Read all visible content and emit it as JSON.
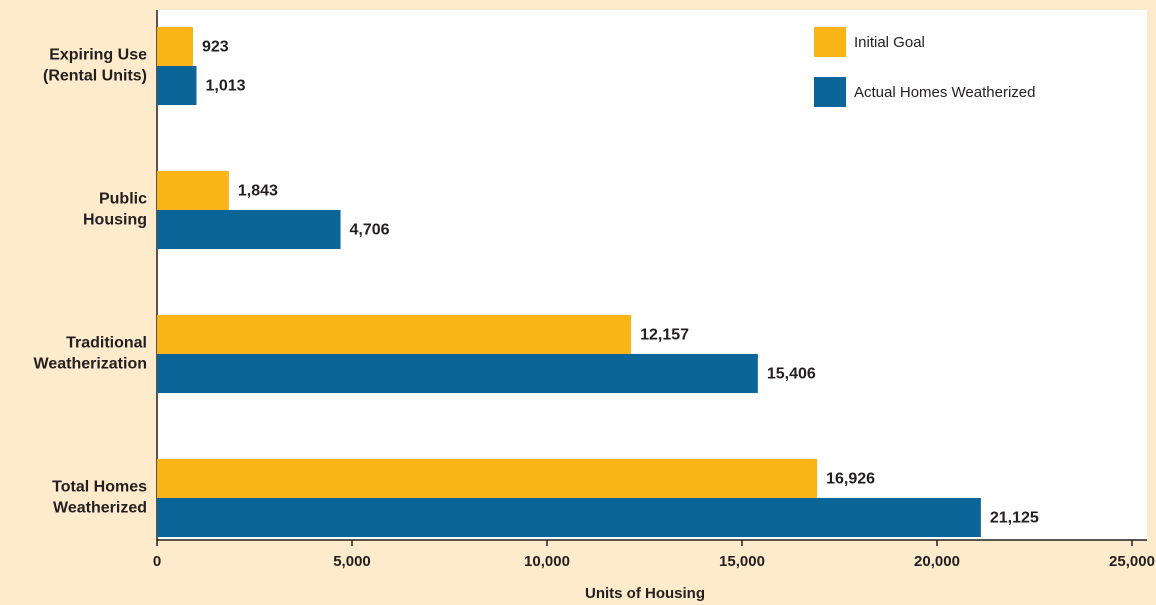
{
  "chart_data": {
    "type": "hbar",
    "categories": [
      [
        "Expiring Use",
        "(Rental Units)"
      ],
      [
        "Public",
        "Housing"
      ],
      [
        "Traditional",
        "Weatherization"
      ],
      [
        "Total Homes",
        "Weatherized"
      ]
    ],
    "series": [
      {
        "name": "Initial Goal",
        "color": "#fbb416",
        "values": [
          923,
          1843,
          12157,
          16926
        ],
        "value_labels": [
          "923",
          "1,843",
          "12,157",
          "16,926"
        ]
      },
      {
        "name": "Actual Homes Weatherized",
        "color": "#0b6598",
        "values": [
          1013,
          4706,
          15406,
          21125
        ],
        "value_labels": [
          "1,013",
          "4,706",
          "15,406",
          "21,125"
        ]
      }
    ],
    "xlabel": "Units of Housing",
    "xlim": [
      0,
      25000
    ],
    "xticks": [
      0,
      {
        "value": 5000,
        "label": "5,000"
      },
      {
        "value": 10000,
        "label": "10,000"
      },
      {
        "value": 15000,
        "label": "15,000"
      },
      {
        "value": 20000,
        "label": "20,000"
      },
      {
        "value": 25000,
        "label": "25,000"
      }
    ],
    "legend": "upper right"
  }
}
